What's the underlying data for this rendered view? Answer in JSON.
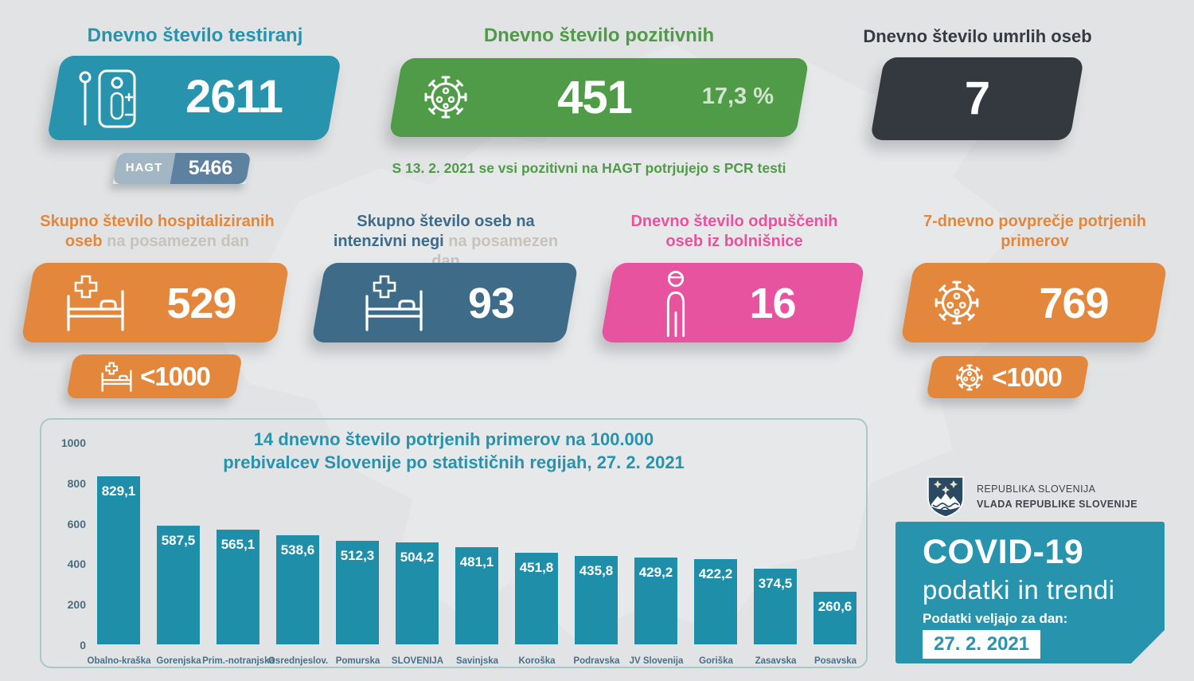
{
  "colors": {
    "teal": "#2793ad",
    "green": "#4f9b48",
    "dark": "#33393f",
    "orange": "#e2873b",
    "steel": "#3d6b88",
    "pink": "#e7539e",
    "bar": "#1f8fa9",
    "hagt_left": "#a3b6c3",
    "hagt_right": "#5d82a0"
  },
  "cards": {
    "tests": {
      "title": "Dnevno število testiranj",
      "value": "2611",
      "hagt_label": "HAGT",
      "hagt_value": "5466"
    },
    "positive": {
      "title": "Dnevno število pozitivnih",
      "value": "451",
      "percent": "17,3 %"
    },
    "deaths": {
      "title": "Dnevno število umrlih oseb",
      "value": "7"
    },
    "note": "S 13. 2. 2021 se vsi pozitivni na HAGT potrjujejo s PCR testi",
    "hospitalized": {
      "title_bold": "Skupno število hospitaliziranih oseb",
      "title_light": " na posamezen dan",
      "value": "529",
      "badge": "<1000"
    },
    "icu": {
      "title_bold": "Skupno število oseb na intenzivni negi",
      "title_light": " na posamezen dan",
      "value": "93"
    },
    "discharged": {
      "title": "Dnevno število odpuščenih oseb iz bolnišnice",
      "value": "16"
    },
    "avg7": {
      "title": "7-dnevno povprečje potrjenih primerov",
      "value": "769",
      "badge": "<1000"
    }
  },
  "chart_data": {
    "type": "bar",
    "title_bold": "14 dnevno število potrjenih primerov",
    "title_rest": " na 100.000",
    "title_line2": "prebivalcev Slovenije po statističnih regijah, 27. 2. 2021",
    "categories": [
      "Obalno-kraška",
      "Gorenjska",
      "Prim.-notranjska",
      "Osrednjeslov.",
      "Pomurska",
      "SLOVENIJA",
      "Savinjska",
      "Koroška",
      "Podravska",
      "JV Slovenija",
      "Goriška",
      "Zasavska",
      "Posavska"
    ],
    "values": [
      829.1,
      587.5,
      565.1,
      538.6,
      512.3,
      504.2,
      481.1,
      451.8,
      435.8,
      429.2,
      422.2,
      374.5,
      260.6
    ],
    "value_labels": [
      "829,1",
      "587,5",
      "565,1",
      "538,6",
      "512,3",
      "504,2",
      "481,1",
      "451,8",
      "435,8",
      "429,2",
      "422,2",
      "374,5",
      "260,6"
    ],
    "yticks": [
      0,
      200,
      400,
      600,
      800,
      1000
    ],
    "ylim": [
      0,
      1000
    ],
    "xlabel": "",
    "ylabel": "",
    "grid": false,
    "legend": "none"
  },
  "footer": {
    "gov_line1": "REPUBLIKA SLOVENIJA",
    "gov_line2": "VLADA REPUBLIKE SLOVENIJE",
    "covid_title": "COVID-19",
    "covid_subtitle": "podatki in trendi",
    "date_label": "Podatki veljajo za dan:",
    "date_value": "27. 2. 2021"
  }
}
